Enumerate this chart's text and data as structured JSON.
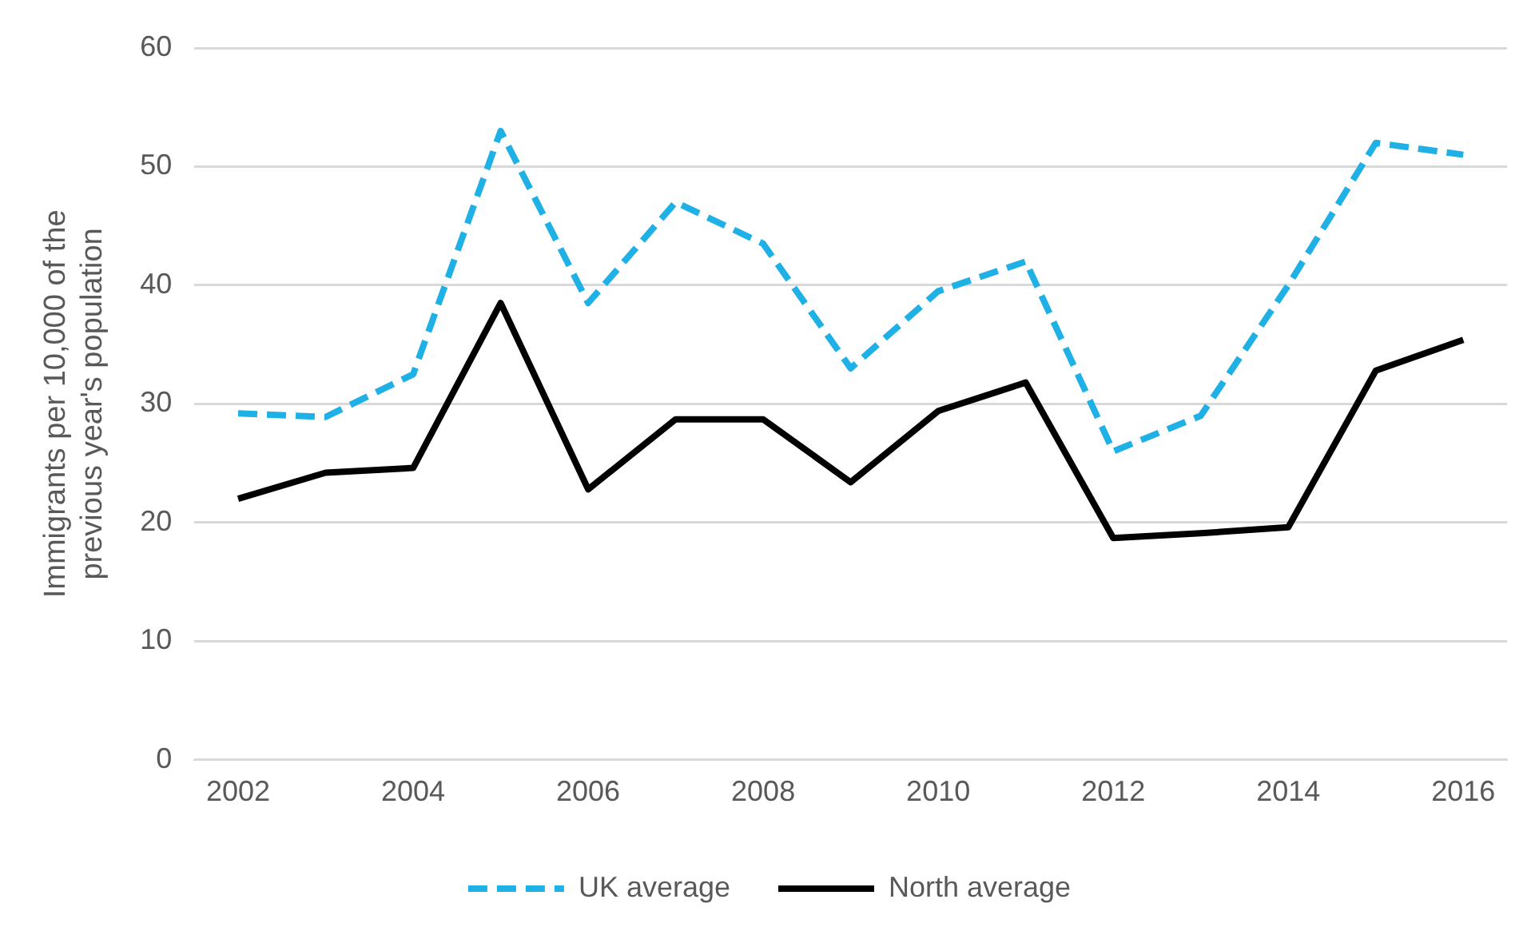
{
  "chart_data": {
    "type": "line",
    "ylabel": "Immigrants per 10,000 of the previous year's population",
    "x": [
      2002,
      2003,
      2004,
      2005,
      2006,
      2007,
      2008,
      2009,
      2010,
      2011,
      2012,
      2013,
      2014,
      2015,
      2016
    ],
    "xlim": [
      2001.5,
      2016.5
    ],
    "xticks": [
      2002,
      2004,
      2006,
      2008,
      2010,
      2012,
      2014,
      2016
    ],
    "ylim": [
      0,
      60
    ],
    "yticks": [
      0,
      10,
      20,
      30,
      40,
      50,
      60
    ],
    "grid": "y",
    "legend": "bottom",
    "marker": "none",
    "series": [
      {
        "name": "UK average",
        "color": "#1fb1e6",
        "line_style": "dashed",
        "values": [
          29.2,
          28.9,
          32.5,
          53,
          38.5,
          47,
          43.5,
          33,
          39.5,
          42,
          26,
          29,
          40,
          52,
          51
        ]
      },
      {
        "name": "North average",
        "color": "#000000",
        "line_style": "solid",
        "values": [
          22,
          24.2,
          24.6,
          38.5,
          22.8,
          28.7,
          28.7,
          23.4,
          29.4,
          31.8,
          18.7,
          19.1,
          19.6,
          32.8,
          35.4
        ]
      }
    ]
  }
}
